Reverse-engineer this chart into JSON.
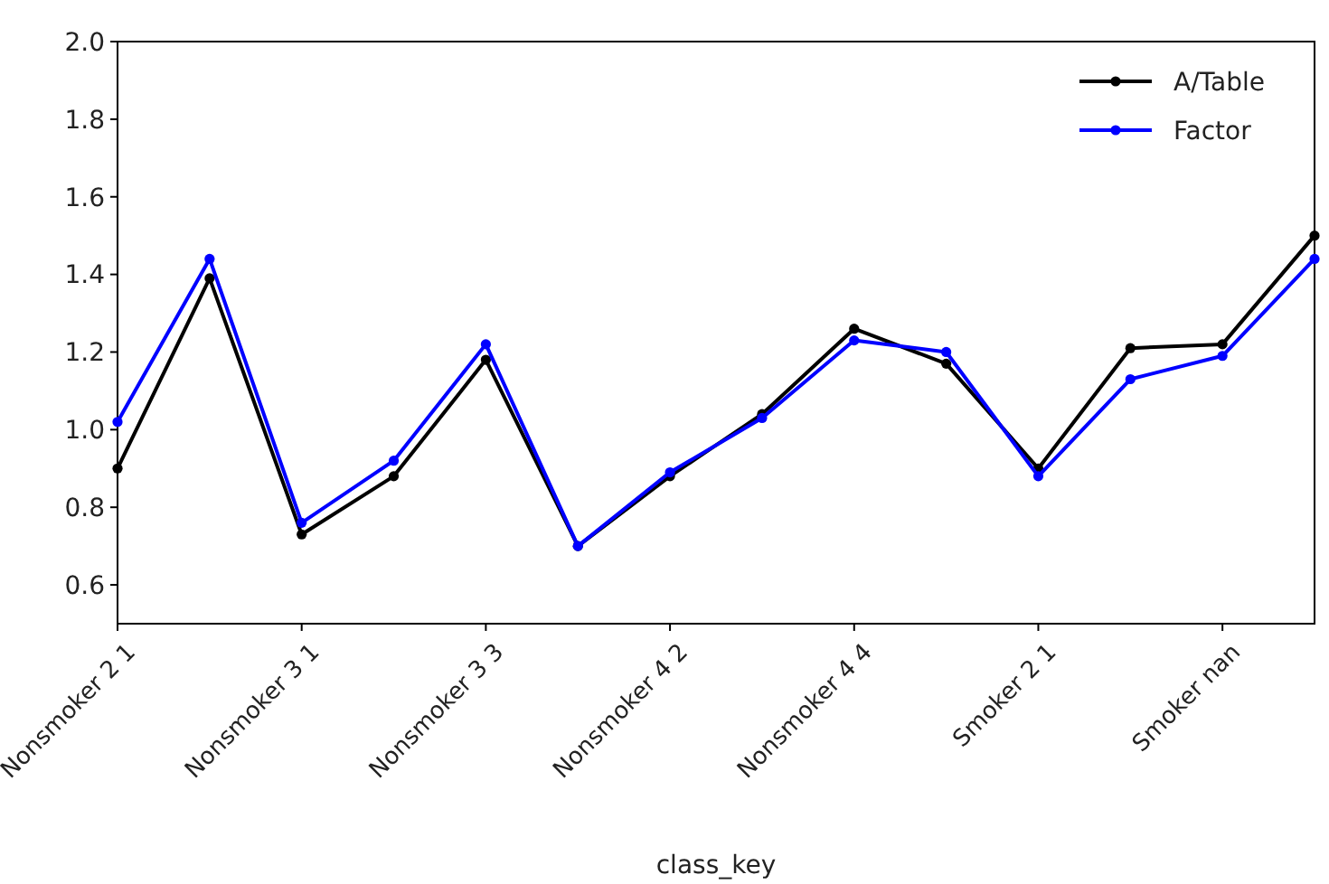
{
  "chart_data": {
    "type": "line",
    "xlabel": "class_key",
    "categories": [
      "Nonsmoker 2 1",
      null,
      "Nonsmoker 3 1",
      null,
      "Nonsmoker 3 3",
      null,
      "Nonsmoker 4 2",
      null,
      "Nonsmoker 4 4",
      null,
      "Smoker 2 1",
      null,
      "Smoker nan",
      null
    ],
    "series": [
      {
        "name": "A/Table",
        "color": "#000000",
        "values": [
          0.9,
          1.39,
          0.73,
          0.88,
          1.18,
          0.7,
          0.88,
          1.04,
          1.26,
          1.17,
          0.9,
          1.21,
          1.22,
          1.5
        ]
      },
      {
        "name": "Factor",
        "color": "#0000ff",
        "values": [
          1.02,
          1.44,
          0.76,
          0.92,
          1.22,
          0.7,
          0.89,
          1.03,
          1.23,
          1.2,
          0.88,
          1.13,
          1.19,
          1.44
        ]
      }
    ],
    "ylim": [
      0.5,
      2.0
    ],
    "yticks": [
      {
        "value": 0.6,
        "label": "0.6"
      },
      {
        "value": 0.8,
        "label": "0.8"
      },
      {
        "value": 1.0,
        "label": "1.0"
      },
      {
        "value": 1.2,
        "label": "1.2"
      },
      {
        "value": 1.4,
        "label": "1.4"
      },
      {
        "value": 1.6,
        "label": "1.6"
      },
      {
        "value": 1.8,
        "label": "1.8"
      },
      {
        "value": 2.0,
        "label": "2.0"
      }
    ],
    "legend": "top right",
    "marker": "circle",
    "line_style": "solid",
    "grid": false
  }
}
